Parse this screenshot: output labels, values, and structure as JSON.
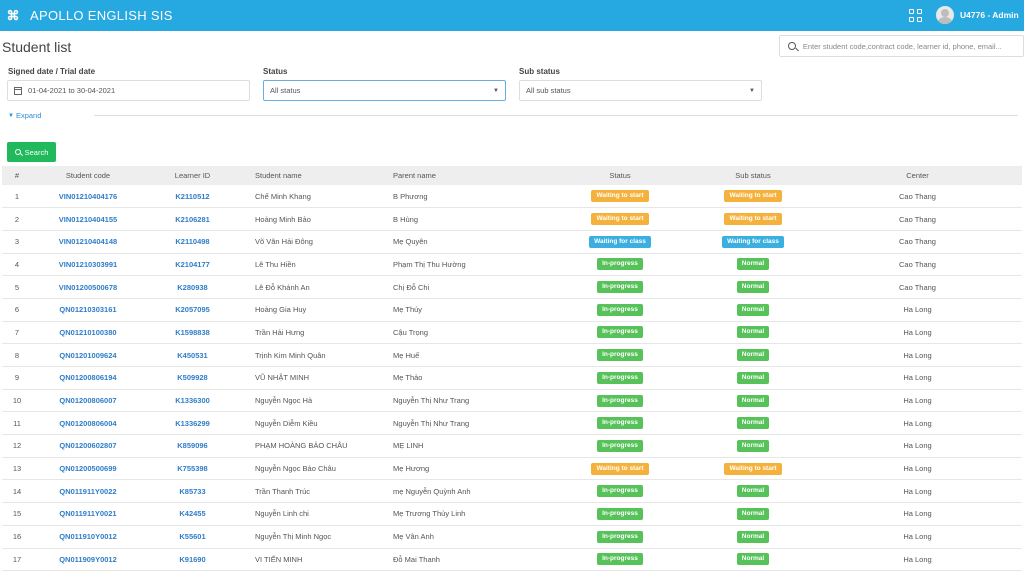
{
  "app": {
    "title": "APOLLO ENGLISH SIS",
    "user": "U4776 - Admin"
  },
  "page": {
    "title": "Student list"
  },
  "search": {
    "placeholder": "Enter student code,contract code, learner id, phone, email..."
  },
  "filters": {
    "signed_date_label": "Signed date / Trial date",
    "signed_date_value": "01-04-2021 to 30-04-2021",
    "status_label": "Status",
    "status_value": "All status",
    "sub_status_label": "Sub status",
    "sub_status_value": "All sub status",
    "expand_label": "Expand",
    "search_button": "Search"
  },
  "colors": {
    "topbar": "#26a8e0",
    "orange_badge": "#f4b23d",
    "blue_badge": "#3bb0e0",
    "green_badge": "#57c25a",
    "search_button": "#20b95c",
    "link": "#2f7dc9"
  },
  "table": {
    "headers": [
      "#",
      "Student code",
      "Learner ID",
      "Student name",
      "Parent name",
      "Status",
      "Sub status",
      "Center"
    ],
    "rows": [
      {
        "num": "1",
        "code": "VIN01210404176",
        "lid": "K2110512",
        "name": "Chế Minh Khang",
        "parent": "B Phương",
        "status": "Waiting to start",
        "status_color": "orange",
        "sub": "Waiting to start",
        "sub_color": "orange",
        "center": "Cao Thang"
      },
      {
        "num": "2",
        "code": "VIN01210404155",
        "lid": "K2106281",
        "name": "Hoàng Minh Bảo",
        "parent": "B Hùng",
        "status": "Waiting to start",
        "status_color": "orange",
        "sub": "Waiting to start",
        "sub_color": "orange",
        "center": "Cao Thang"
      },
      {
        "num": "3",
        "code": "VIN01210404148",
        "lid": "K2110498",
        "name": "Võ Văn Hải Đông",
        "parent": "Mẹ Quyên",
        "status": "Waiting for class",
        "status_color": "blue",
        "sub": "Waiting for class",
        "sub_color": "blue",
        "center": "Cao Thang"
      },
      {
        "num": "4",
        "code": "VIN01210303991",
        "lid": "K2104177",
        "name": "Lê Thu Hiền",
        "parent": "Phạm Thị Thu Hường",
        "status": "In-progress",
        "status_color": "green",
        "sub": "Normal",
        "sub_color": "green",
        "center": "Cao Thang"
      },
      {
        "num": "5",
        "code": "VIN01200500678",
        "lid": "K280938",
        "name": "Lê Đỗ Khánh An",
        "parent": "Chị Đỗ Chi",
        "status": "In-progress",
        "status_color": "green",
        "sub": "Normal",
        "sub_color": "green",
        "center": "Cao Thang"
      },
      {
        "num": "6",
        "code": "QN01210303161",
        "lid": "K2057095",
        "name": "Hoàng Gia Huy",
        "parent": "Mẹ Thúy",
        "status": "In-progress",
        "status_color": "green",
        "sub": "Normal",
        "sub_color": "green",
        "center": "Ha Long"
      },
      {
        "num": "7",
        "code": "QN01210100380",
        "lid": "K1598838",
        "name": "Trần Hải Hưng",
        "parent": "Cậu Trọng",
        "status": "In-progress",
        "status_color": "green",
        "sub": "Normal",
        "sub_color": "green",
        "center": "Ha Long"
      },
      {
        "num": "8",
        "code": "QN01201009624",
        "lid": "K450531",
        "name": "Trịnh Kim Minh Quân",
        "parent": "Mẹ Huế",
        "status": "In-progress",
        "status_color": "green",
        "sub": "Normal",
        "sub_color": "green",
        "center": "Ha Long"
      },
      {
        "num": "9",
        "code": "QN01200806194",
        "lid": "K509928",
        "name": "VŨ NHẬT MINH",
        "parent": "Mẹ Thảo",
        "status": "In-progress",
        "status_color": "green",
        "sub": "Normal",
        "sub_color": "green",
        "center": "Ha Long"
      },
      {
        "num": "10",
        "code": "QN01200806007",
        "lid": "K1336300",
        "name": "Nguyễn Ngọc Hà",
        "parent": "Nguyễn Thị Như Trang",
        "status": "In-progress",
        "status_color": "green",
        "sub": "Normal",
        "sub_color": "green",
        "center": "Ha Long"
      },
      {
        "num": "11",
        "code": "QN01200806004",
        "lid": "K1336299",
        "name": "Nguyễn Diễm Kiều",
        "parent": "Nguyễn Thị Như Trang",
        "status": "In-progress",
        "status_color": "green",
        "sub": "Normal",
        "sub_color": "green",
        "center": "Ha Long"
      },
      {
        "num": "12",
        "code": "QN01200602807",
        "lid": "K859096",
        "name": "PHẠM HOÀNG BẢO CHÂU",
        "parent": "MẸ LINH",
        "status": "In-progress",
        "status_color": "green",
        "sub": "Normal",
        "sub_color": "green",
        "center": "Ha Long"
      },
      {
        "num": "13",
        "code": "QN01200500699",
        "lid": "K755398",
        "name": "Nguyễn Ngọc Bảo Châu",
        "parent": "Mẹ Hương",
        "status": "Waiting to start",
        "status_color": "orange",
        "sub": "Waiting to start",
        "sub_color": "orange",
        "center": "Ha Long"
      },
      {
        "num": "14",
        "code": "QN011911Y0022",
        "lid": "K85733",
        "name": "Trần Thanh Trúc",
        "parent": "mẹ Nguyễn Quỳnh Anh",
        "status": "In-progress",
        "status_color": "green",
        "sub": "Normal",
        "sub_color": "green",
        "center": "Ha Long"
      },
      {
        "num": "15",
        "code": "QN011911Y0021",
        "lid": "K42455",
        "name": "Nguyễn Linh chi",
        "parent": "Mẹ Trương Thùy Linh",
        "status": "In-progress",
        "status_color": "green",
        "sub": "Normal",
        "sub_color": "green",
        "center": "Ha Long"
      },
      {
        "num": "16",
        "code": "QN011910Y0012",
        "lid": "K55601",
        "name": "Nguyễn Thị Minh Ngọc",
        "parent": "Mẹ Vân Anh",
        "status": "In-progress",
        "status_color": "green",
        "sub": "Normal",
        "sub_color": "green",
        "center": "Ha Long"
      },
      {
        "num": "17",
        "code": "QN011909Y0012",
        "lid": "K91690",
        "name": "VI TIẾN MINH",
        "parent": "Đỗ Mai Thanh",
        "status": "In-progress",
        "status_color": "green",
        "sub": "Normal",
        "sub_color": "green",
        "center": "Ha Long"
      }
    ]
  }
}
